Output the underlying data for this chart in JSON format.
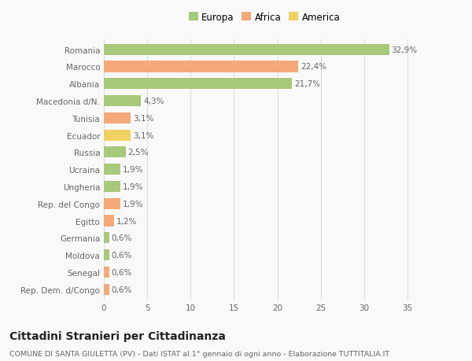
{
  "categories": [
    "Rep. Dem. d/Congo",
    "Senegal",
    "Moldova",
    "Germania",
    "Egitto",
    "Rep. del Congo",
    "Ungheria",
    "Ucraina",
    "Russia",
    "Ecuador",
    "Tunisia",
    "Macedonia d/N.",
    "Albania",
    "Marocco",
    "Romania"
  ],
  "values": [
    0.6,
    0.6,
    0.6,
    0.6,
    1.2,
    1.9,
    1.9,
    1.9,
    2.5,
    3.1,
    3.1,
    4.3,
    21.7,
    22.4,
    32.9
  ],
  "labels": [
    "0,6%",
    "0,6%",
    "0,6%",
    "0,6%",
    "1,2%",
    "1,9%",
    "1,9%",
    "1,9%",
    "2,5%",
    "3,1%",
    "3,1%",
    "4,3%",
    "21,7%",
    "22,4%",
    "32,9%"
  ],
  "colors": [
    "#f5a87a",
    "#f5a87a",
    "#a8c87a",
    "#a8c87a",
    "#f5a87a",
    "#f5a87a",
    "#a8c87a",
    "#a8c87a",
    "#a8c87a",
    "#f0d060",
    "#f5a87a",
    "#a8c87a",
    "#a8c87a",
    "#f5a87a",
    "#a8c87a"
  ],
  "legend_labels": [
    "Europa",
    "Africa",
    "America"
  ],
  "legend_colors": [
    "#a8c87a",
    "#f5a87a",
    "#f0d060"
  ],
  "title": "Cittadini Stranieri per Cittadinanza",
  "subtitle": "COMUNE DI SANTA GIULETTA (PV) - Dati ISTAT al 1° gennaio di ogni anno - Elaborazione TUTTITALIA.IT",
  "xlim": [
    0,
    37
  ],
  "xticks": [
    0,
    5,
    10,
    15,
    20,
    25,
    30,
    35
  ],
  "bar_height": 0.65,
  "background_color": "#f9f9f9",
  "grid_color": "#dddddd",
  "text_color": "#666666",
  "label_fontsize": 7.5,
  "tick_fontsize": 7.5,
  "title_fontsize": 10,
  "subtitle_fontsize": 6.8,
  "legend_fontsize": 8.5
}
